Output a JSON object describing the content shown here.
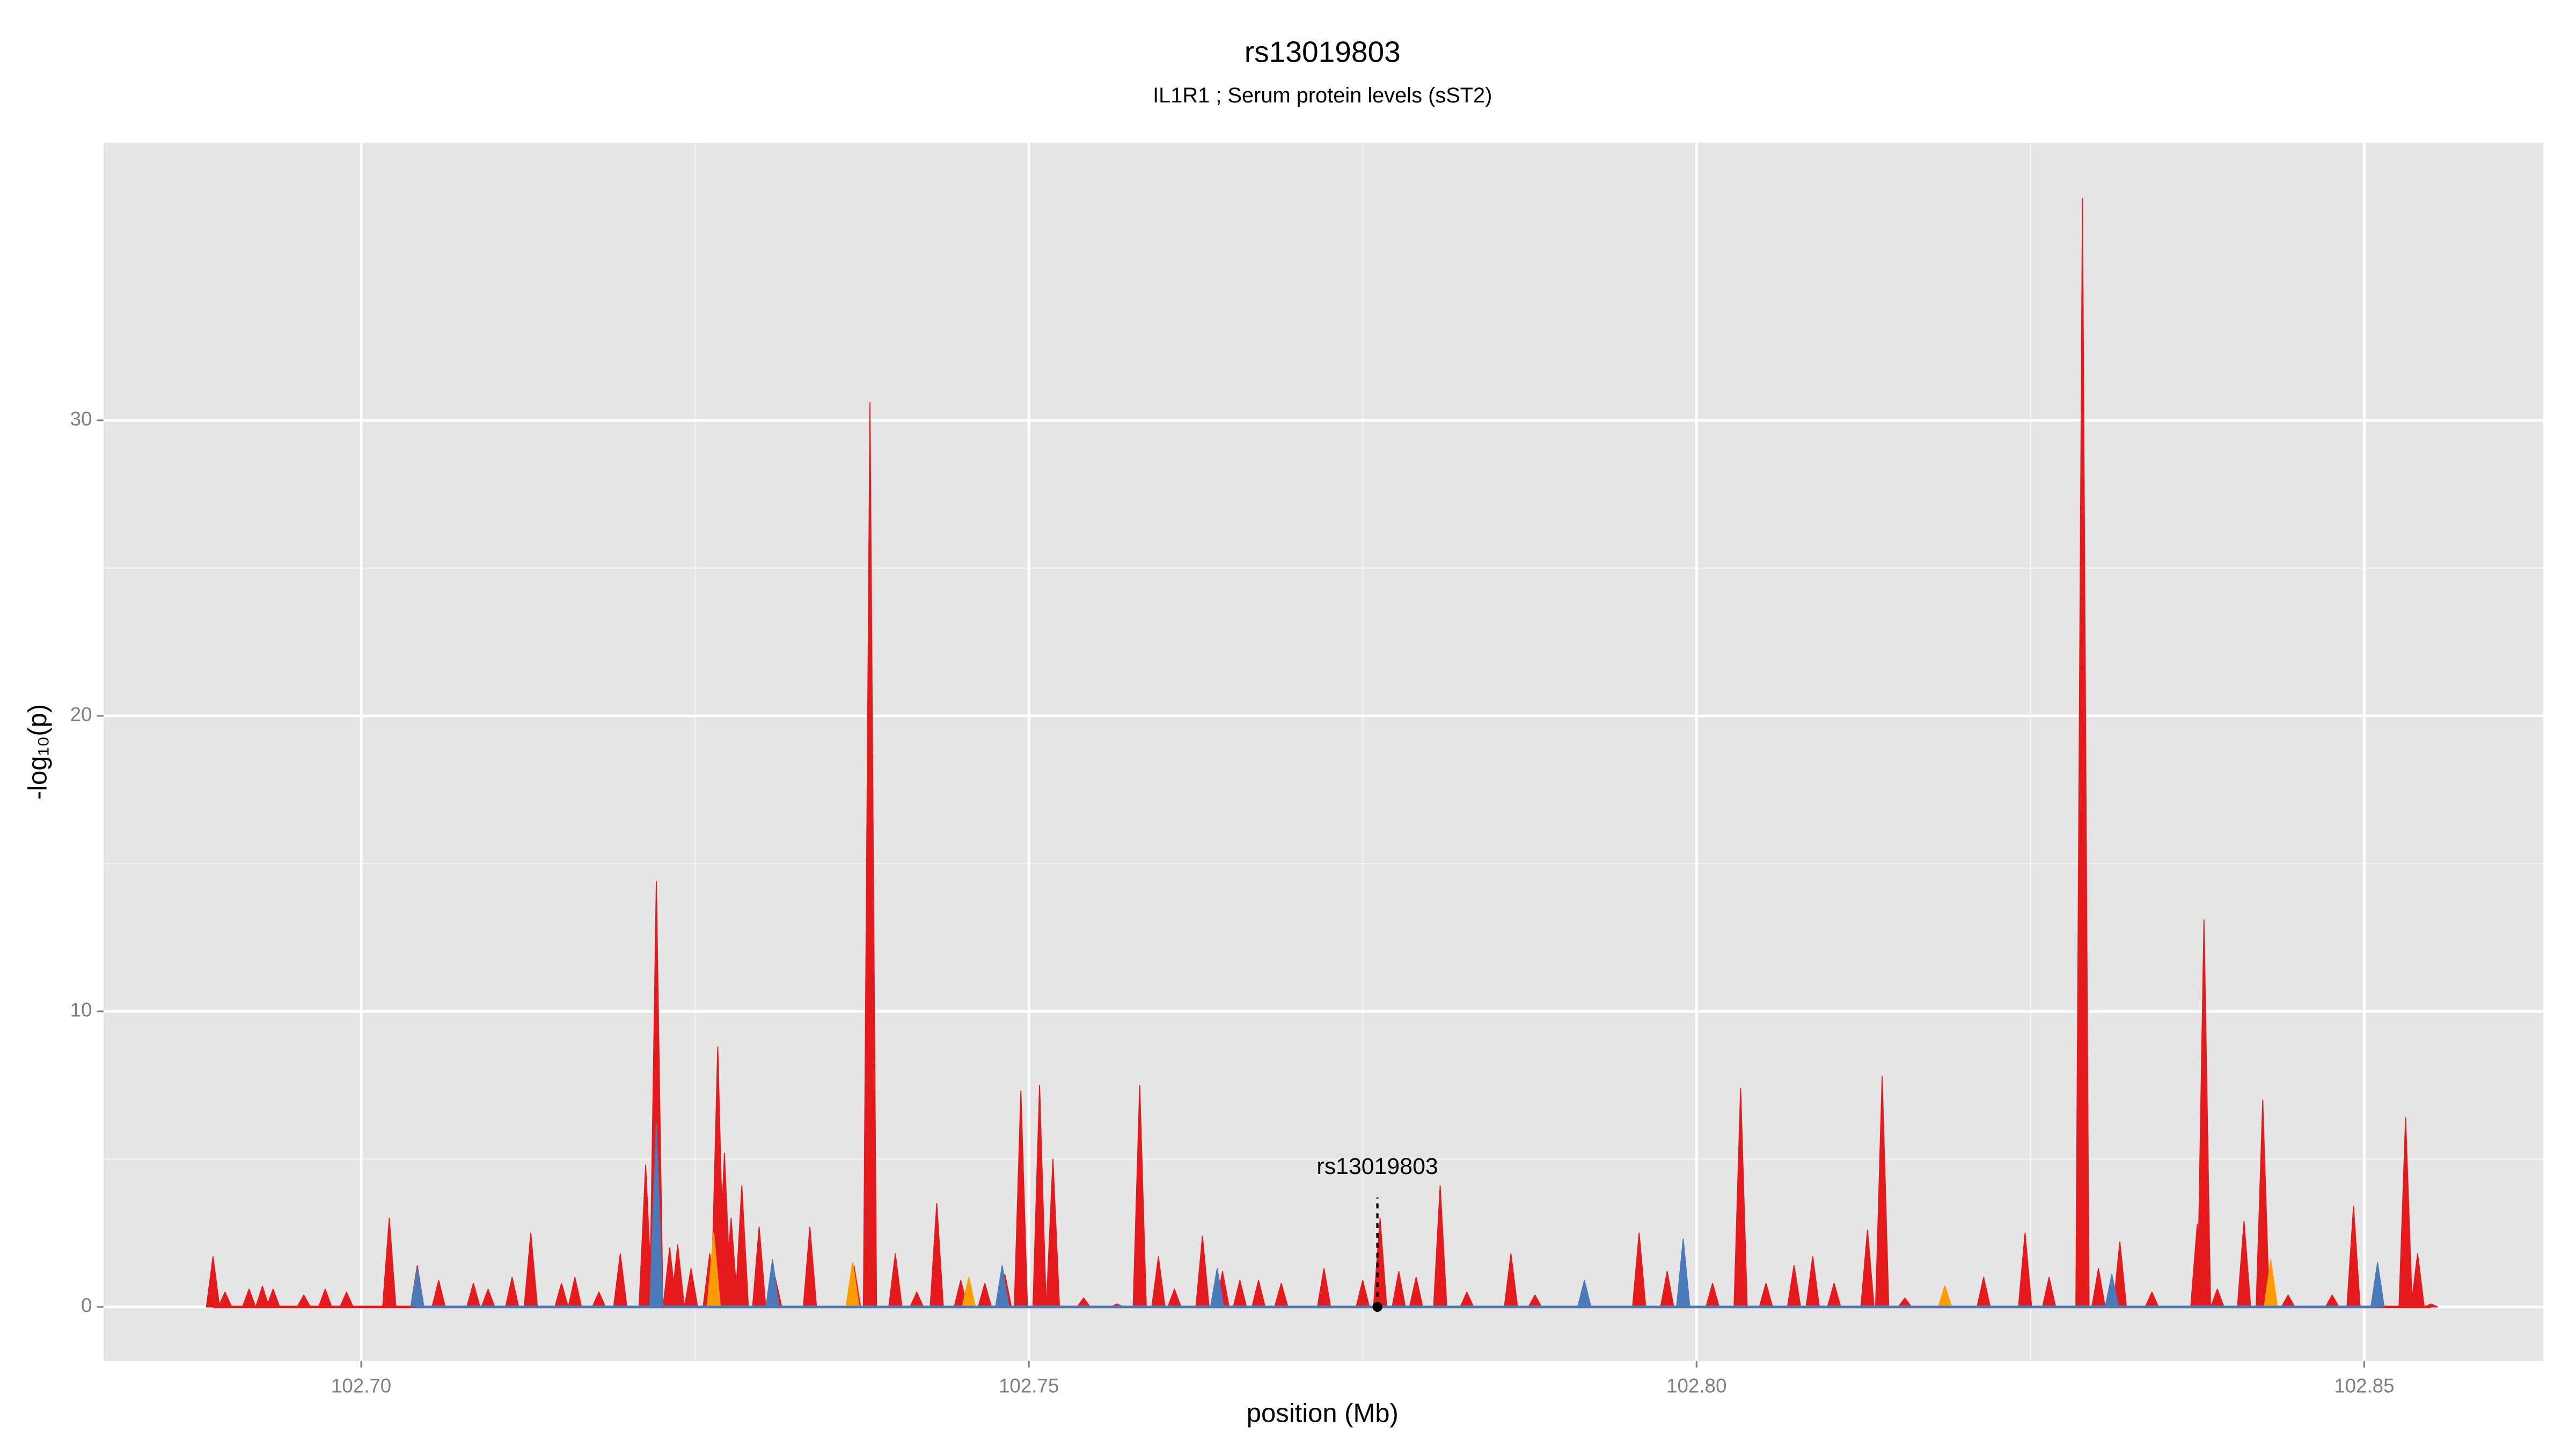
{
  "chart_data": {
    "type": "area",
    "title": "rs13019803",
    "subtitle": "IL1R1 ; Serum protein levels (sST2)",
    "xlabel": "position (Mb)",
    "ylabel": "-log₁₀(p)",
    "xlim": [
      102.6807,
      102.8634
    ],
    "ylim": [
      -1.83,
      39.39
    ],
    "xticks": [
      {
        "value": 102.7,
        "label": "102.70"
      },
      102.75,
      {
        "value": 102.8,
        "label": "102.80"
      },
      102.85
    ],
    "yticks": [
      0,
      10,
      20,
      30
    ],
    "grid": true,
    "series": [
      {
        "color": "#e41a1c",
        "x": [
          102.6889,
          102.6898,
          102.6916,
          102.6926,
          102.6934,
          102.6957,
          102.6973,
          102.6989,
          102.7021,
          102.7042,
          102.7058,
          102.7084,
          102.7095,
          102.7113,
          102.7127,
          102.715,
          102.716,
          102.7178,
          102.7194,
          102.7213,
          102.7221,
          102.7231,
          102.7237,
          102.7247,
          102.7261,
          102.7267,
          102.7272,
          102.7277,
          102.7285,
          102.7298,
          102.731,
          102.7336,
          102.7369,
          102.7381,
          102.74,
          102.7416,
          102.7431,
          102.7449,
          102.7467,
          102.7482,
          102.7494,
          102.7508,
          102.7518,
          102.7541,
          102.7566,
          102.7583,
          102.7597,
          102.7609,
          102.763,
          102.7645,
          102.7658,
          102.7672,
          102.7689,
          102.7721,
          102.775,
          102.7763,
          102.7777,
          102.779,
          102.7808,
          102.7828,
          102.7861,
          102.7879,
          102.7916,
          102.7957,
          102.7978,
          102.799,
          102.8012,
          102.8033,
          102.8052,
          102.8073,
          102.8087,
          102.8103,
          102.8128,
          102.8139,
          102.8156,
          102.8186,
          102.8215,
          102.8246,
          102.8264,
          102.8289,
          102.8301,
          102.8317,
          102.8341,
          102.8375,
          102.838,
          102.839,
          102.841,
          102.8424,
          102.8443,
          102.8476,
          102.8492,
          102.851,
          102.8531,
          102.854,
          102.855
        ],
        "values": [
          1.7,
          0.5,
          0.6,
          0.7,
          0.6,
          0.4,
          0.6,
          0.5,
          3.0,
          1.4,
          0.9,
          0.8,
          0.6,
          1.0,
          2.5,
          0.8,
          1.0,
          0.5,
          1.8,
          4.8,
          14.4,
          2.0,
          2.1,
          1.3,
          1.8,
          8.8,
          5.2,
          3.0,
          4.1,
          2.7,
          1.0,
          2.7,
          1.4,
          30.6,
          1.8,
          0.5,
          3.5,
          0.9,
          0.8,
          1.1,
          7.3,
          7.5,
          5.0,
          0.3,
          0.1,
          7.5,
          1.7,
          0.6,
          2.4,
          1.2,
          0.9,
          0.9,
          0.8,
          1.3,
          0.9,
          3.0,
          1.2,
          1.0,
          4.1,
          0.5,
          1.8,
          0.4,
          0.8,
          2.5,
          1.2,
          2.1,
          0.8,
          7.4,
          0.8,
          1.4,
          1.7,
          0.8,
          2.6,
          7.8,
          0.3,
          0.7,
          1.0,
          2.5,
          1.0,
          37.5,
          1.3,
          2.2,
          0.5,
          2.8,
          13.1,
          0.6,
          2.9,
          7.0,
          0.4,
          0.4,
          3.4,
          1.2,
          6.4,
          1.8,
          0.1
        ]
      },
      {
        "color": "#ff9d00",
        "x": [
          102.7264,
          102.7368,
          102.7455,
          102.8186,
          102.843
        ],
        "values": [
          2.5,
          1.5,
          1.0,
          0.7,
          1.6
        ]
      },
      {
        "color": "#4a7ab8",
        "x": [
          102.7042,
          102.7221,
          102.7308,
          102.748,
          102.7641,
          102.7916,
          102.799,
          102.8311,
          102.851
        ],
        "values": [
          1.3,
          6.2,
          1.6,
          1.4,
          1.3,
          0.9,
          2.3,
          1.1,
          1.5
        ]
      }
    ],
    "annotation": {
      "text": "rs13019803",
      "x": 102.7761,
      "y": 0,
      "line_top": 3.7
    }
  }
}
